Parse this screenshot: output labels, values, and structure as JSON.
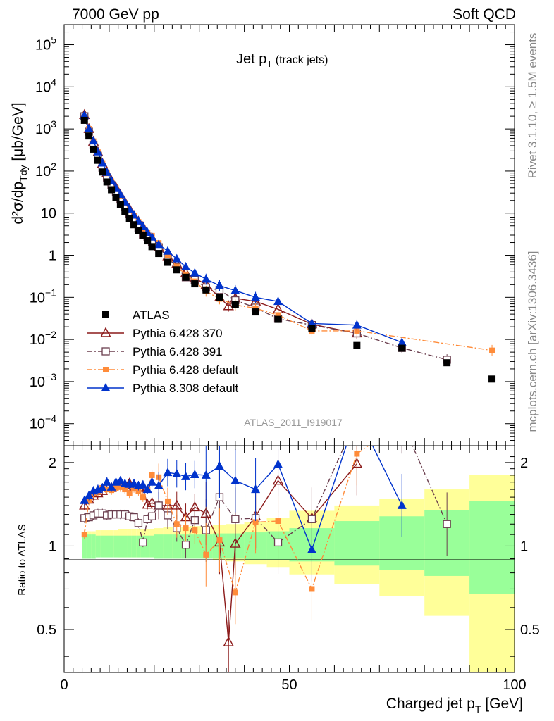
{
  "header": {
    "left": "7000 GeV pp",
    "right": "Soft QCD"
  },
  "side_labels": {
    "rivet": "Rivet 3.1.10, ≥ 1.5M events",
    "mcplots": "mcplots.cern.ch [arXiv:1306.3436]"
  },
  "chart_data": {
    "type": "scatter",
    "title": "Jet p",
    "title_sub": "T",
    "title_suffix": "(track jets)",
    "analysis_label": "ATLAS_2011_I919017",
    "xlabel": "Charged jet p",
    "xlabel_sub": "T",
    "xlabel_unit": "[GeV]",
    "ylabel_main": "d²σ/dp",
    "ylabel_sub": "Tdy",
    "ylabel_unit": "[μb/GeV]",
    "ylabel_ratio": "Ratio to ATLAS",
    "xlim": [
      0,
      100
    ],
    "ylim_main": [
      3e-05,
      300000
    ],
    "ylim_ratio": [
      0.35,
      2.3
    ],
    "yscale_main": "log",
    "yscale_ratio": "log",
    "x_ticks": [
      0,
      50,
      100
    ],
    "x_tick_labels": [
      "0",
      "50",
      "100"
    ],
    "y_ticks_main": [
      {
        "value": 0.0001,
        "mant": "10",
        "exp": "−4"
      },
      {
        "value": 0.001,
        "mant": "10",
        "exp": "−3"
      },
      {
        "value": 0.01,
        "mant": "10",
        "exp": "−2"
      },
      {
        "value": 0.1,
        "mant": "10",
        "exp": "−1"
      },
      {
        "value": 1,
        "mant": "1",
        "exp": ""
      },
      {
        "value": 10,
        "mant": "10",
        "exp": ""
      },
      {
        "value": 100,
        "mant": "10",
        "exp": "2"
      },
      {
        "value": 1000,
        "mant": "10",
        "exp": "3"
      },
      {
        "value": 10000,
        "mant": "10",
        "exp": "4"
      },
      {
        "value": 100000,
        "mant": "10",
        "exp": "5"
      }
    ],
    "y_ticks_ratio": [
      0.5,
      1,
      2
    ],
    "y_tick_labels_ratio": [
      "0.5",
      "1",
      "2"
    ],
    "legend_position": "lower-left",
    "uncertainty_bands": {
      "edges": [
        4,
        5,
        6,
        7,
        8,
        9,
        10,
        11,
        12,
        13,
        14,
        15,
        16,
        17,
        18,
        19,
        20,
        22,
        24,
        26,
        28,
        30,
        33,
        36,
        40,
        45,
        50,
        60,
        70,
        80,
        90,
        100
      ],
      "inner_lo": [
        0.9,
        0.9,
        0.9,
        0.91,
        0.91,
        0.91,
        0.91,
        0.91,
        0.91,
        0.91,
        0.91,
        0.91,
        0.91,
        0.91,
        0.91,
        0.91,
        0.9,
        0.9,
        0.9,
        0.9,
        0.9,
        0.9,
        0.9,
        0.9,
        0.89,
        0.89,
        0.88,
        0.85,
        0.82,
        0.78,
        0.67
      ],
      "inner_hi": [
        1.1,
        1.1,
        1.1,
        1.09,
        1.09,
        1.09,
        1.09,
        1.09,
        1.09,
        1.09,
        1.09,
        1.09,
        1.09,
        1.09,
        1.09,
        1.09,
        1.1,
        1.1,
        1.1,
        1.1,
        1.1,
        1.1,
        1.11,
        1.11,
        1.12,
        1.13,
        1.16,
        1.23,
        1.28,
        1.35,
        1.45
      ],
      "outer_lo": [
        0.94,
        0.93,
        0.93,
        0.92,
        0.92,
        0.92,
        0.92,
        0.92,
        0.91,
        0.91,
        0.91,
        0.91,
        0.91,
        0.91,
        0.91,
        0.91,
        0.91,
        0.9,
        0.9,
        0.9,
        0.9,
        0.9,
        0.89,
        0.88,
        0.86,
        0.84,
        0.79,
        0.73,
        0.66,
        0.56,
        0.33
      ],
      "outer_hi": [
        1.12,
        1.13,
        1.13,
        1.14,
        1.14,
        1.14,
        1.14,
        1.14,
        1.15,
        1.15,
        1.15,
        1.15,
        1.15,
        1.15,
        1.15,
        1.15,
        1.16,
        1.17,
        1.17,
        1.17,
        1.18,
        1.18,
        1.19,
        1.2,
        1.22,
        1.26,
        1.34,
        1.4,
        1.48,
        1.6,
        1.8
      ]
    },
    "series": [
      {
        "name": "ATLAS",
        "color": "#000000",
        "marker": "square-filled",
        "line": "none",
        "x": [
          4.5,
          5.5,
          6.5,
          7.5,
          8.5,
          9.5,
          10.5,
          11.5,
          12.5,
          13.5,
          14.5,
          15.5,
          16.5,
          17.5,
          18.5,
          19.5,
          21,
          23,
          25,
          27,
          29,
          31.5,
          34.5,
          38,
          42.5,
          47.5,
          55,
          65,
          75,
          85,
          95
        ],
        "y": [
          1600,
          680,
          330,
          180,
          95,
          55,
          36,
          24,
          16,
          11,
          7.5,
          5.3,
          3.9,
          2.9,
          2.2,
          1.6,
          1.1,
          0.68,
          0.45,
          0.3,
          0.21,
          0.15,
          0.098,
          0.068,
          0.045,
          0.03,
          0.018,
          0.0072,
          0.0062,
          0.0028,
          0.00115
        ]
      },
      {
        "name": "Pythia 6.428 370",
        "color": "#8b1a1a",
        "marker": "triangle-open",
        "line": "solid",
        "x": [
          4.5,
          5.5,
          6.5,
          7.5,
          8.5,
          9.5,
          10.5,
          11.5,
          12.5,
          13.5,
          14.5,
          15.5,
          16.5,
          17.5,
          18.5,
          19.5,
          21,
          23,
          25,
          27,
          29,
          31.5,
          34.5,
          36.5,
          38,
          42.5,
          47.5,
          55,
          65
        ],
        "y": [
          2150,
          1000,
          500,
          280,
          150,
          90,
          58,
          40,
          27,
          18,
          12.5,
          8.7,
          6.3,
          4.7,
          3.1,
          2.3,
          1.55,
          0.95,
          0.63,
          0.38,
          0.29,
          0.2,
          0.1,
          0.062,
          0.095,
          0.08,
          0.052,
          0.023,
          0.014
        ],
        "ratio": [
          1.4,
          1.47,
          1.52,
          1.55,
          1.58,
          1.63,
          1.62,
          1.66,
          1.68,
          1.66,
          1.68,
          1.64,
          1.63,
          1.62,
          1.41,
          1.43,
          1.4,
          1.4,
          1.4,
          1.27,
          1.38,
          1.31,
          1.03,
          0.45,
          1.02,
          1.28,
          1.72,
          1.26,
          1.98
        ]
      },
      {
        "name": "Pythia 6.428 391",
        "color": "#6b3e4e",
        "marker": "square-open",
        "line": "dashdot",
        "x": [
          4.5,
          5.5,
          6.5,
          7.5,
          8.5,
          9.5,
          10.5,
          11.5,
          12.5,
          13.5,
          14.5,
          15.5,
          16.5,
          17.5,
          18.5,
          19.5,
          21,
          23,
          25,
          27,
          29,
          31.5,
          34.5,
          38,
          42.5,
          47.5,
          55,
          65,
          75,
          85
        ],
        "y": [
          2000,
          860,
          420,
          230,
          120,
          70,
          46,
          31,
          21,
          14,
          9.5,
          6.5,
          4.5,
          3.0,
          2.75,
          2.05,
          1.55,
          0.88,
          0.52,
          0.3,
          0.26,
          0.17,
          0.15,
          0.085,
          0.057,
          0.031,
          0.022,
          0.014,
          0.0063,
          0.0033
        ],
        "ratio": [
          1.26,
          1.27,
          1.29,
          1.31,
          1.31,
          1.29,
          1.3,
          1.3,
          1.3,
          1.3,
          1.28,
          1.27,
          1.21,
          1.03,
          1.25,
          1.28,
          1.4,
          1.29,
          1.16,
          1.01,
          1.24,
          1.14,
          1.5,
          1.25,
          1.26,
          1.03,
          1.25,
          2.9,
          2.8,
          1.2
        ]
      },
      {
        "name": "Pythia 6.428 default",
        "color": "#ff8c3a",
        "marker": "square-filled-small",
        "line": "dashdot",
        "x": [
          4.5,
          5.5,
          6.5,
          7.5,
          8.5,
          9.5,
          10.5,
          11.5,
          12.5,
          13.5,
          14.5,
          15.5,
          16.5,
          17.5,
          18.5,
          19.5,
          21,
          23,
          25,
          27,
          29,
          31.5,
          34.5,
          38,
          42.5,
          47.5,
          55,
          65,
          95
        ],
        "y": [
          1750,
          1000,
          510,
          280,
          155,
          88,
          57,
          39,
          26,
          17.5,
          11.5,
          8.6,
          6.2,
          4.3,
          3.5,
          2.9,
          1.95,
          0.98,
          0.54,
          0.35,
          0.24,
          0.14,
          0.092,
          0.066,
          0.055,
          0.038,
          0.016,
          0.016,
          0.0055
        ],
        "ratio": [
          1.1,
          1.46,
          1.55,
          1.57,
          1.62,
          1.6,
          1.59,
          1.62,
          1.63,
          1.6,
          1.55,
          1.62,
          1.58,
          1.5,
          1.6,
          1.8,
          1.77,
          1.45,
          1.2,
          1.16,
          1.14,
          0.93,
          1.05,
          0.68,
          1.22,
          1.23,
          0.7,
          2.15,
          4.7
        ]
      },
      {
        "name": "Pythia 8.308 default",
        "color": "#0033cc",
        "marker": "triangle-filled",
        "line": "solid",
        "x": [
          4.5,
          5.5,
          6.5,
          7.5,
          8.5,
          9.5,
          10.5,
          11.5,
          12.5,
          13.5,
          14.5,
          15.5,
          16.5,
          17.5,
          18.5,
          19.5,
          21,
          23,
          25,
          27,
          29,
          31.5,
          34.5,
          38,
          42.5,
          47.5,
          55,
          65,
          75
        ],
        "y": [
          2100,
          1010,
          520,
          285,
          155,
          93,
          59,
          40,
          28,
          18.5,
          12.5,
          9.0,
          6.5,
          4.8,
          3.5,
          2.7,
          1.8,
          1.25,
          0.82,
          0.53,
          0.38,
          0.27,
          0.19,
          0.145,
          0.1,
          0.08,
          0.024,
          0.022,
          0.0085
        ],
        "ratio": [
          1.46,
          1.52,
          1.58,
          1.6,
          1.62,
          1.7,
          1.63,
          1.7,
          1.72,
          1.68,
          1.67,
          1.68,
          1.65,
          1.66,
          1.6,
          1.7,
          1.65,
          1.84,
          1.82,
          1.78,
          1.81,
          1.8,
          1.94,
          1.72,
          1.6,
          1.97,
          0.97,
          3.0,
          1.4
        ]
      }
    ]
  }
}
